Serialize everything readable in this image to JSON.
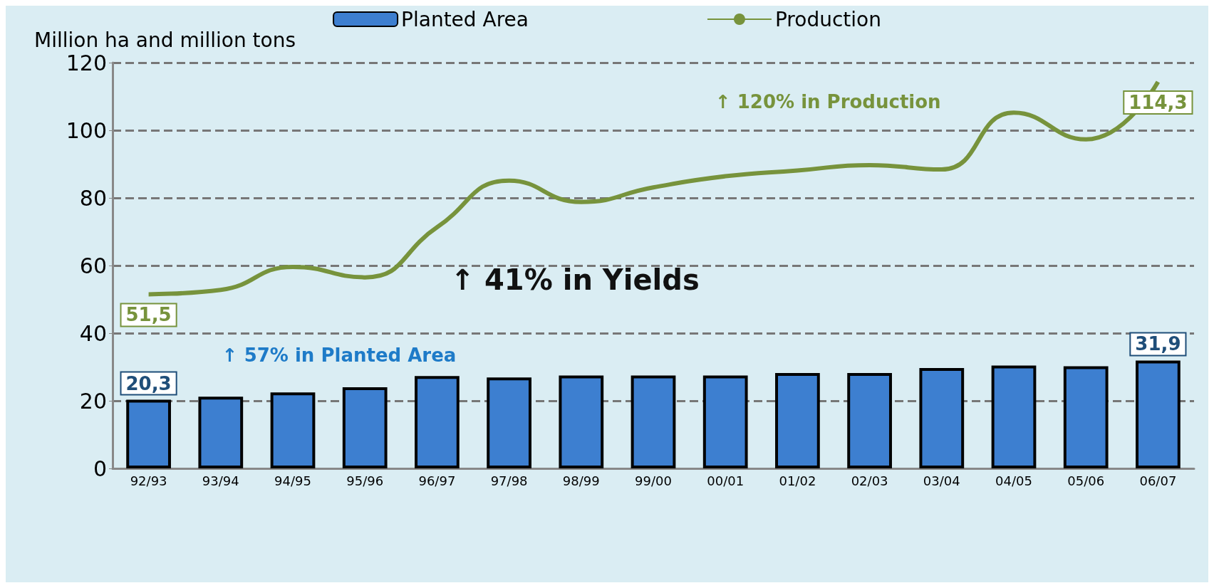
{
  "chart_data": {
    "type": "bar",
    "ylabel": "Million ha and million tons",
    "categories": [
      "92/93",
      "93/94",
      "94/95",
      "95/96",
      "96/97",
      "97/98",
      "98/99",
      "99/00",
      "00/01",
      "01/02",
      "02/03",
      "03/04",
      "04/05",
      "05/06",
      "06/07"
    ],
    "series": [
      {
        "name": "Planted Area",
        "color": "#3d7fd0",
        "values": [
          20.3,
          21.2,
          22.5,
          24.0,
          27.3,
          26.9,
          27.5,
          27.5,
          27.5,
          28.2,
          28.2,
          29.7,
          30.4,
          30.2,
          31.9
        ],
        "value_labels": [
          "20,3",
          null,
          null,
          null,
          null,
          null,
          null,
          null,
          null,
          null,
          null,
          null,
          null,
          null,
          "31,9"
        ]
      },
      {
        "name": "Production",
        "type": "line",
        "color": "#77933c",
        "values": [
          51.5,
          52.8,
          59.6,
          56.5,
          71.3,
          85.1,
          78.8,
          83.1,
          86.4,
          88.1,
          89.7,
          88.4,
          105.2,
          97.3,
          114.3
        ],
        "value_labels": [
          "51,5",
          null,
          null,
          null,
          null,
          null,
          null,
          null,
          null,
          null,
          null,
          null,
          null,
          null,
          "114,3"
        ]
      }
    ],
    "ylim": [
      0,
      120
    ],
    "yticks": [
      0,
      20,
      40,
      60,
      80,
      100,
      120
    ],
    "grid": "y",
    "legend": "top",
    "marker": "none",
    "annotations": [
      "↑ 120% in Production",
      "↑ 41% in Yields",
      "↑ 57% in Planted Area"
    ]
  }
}
